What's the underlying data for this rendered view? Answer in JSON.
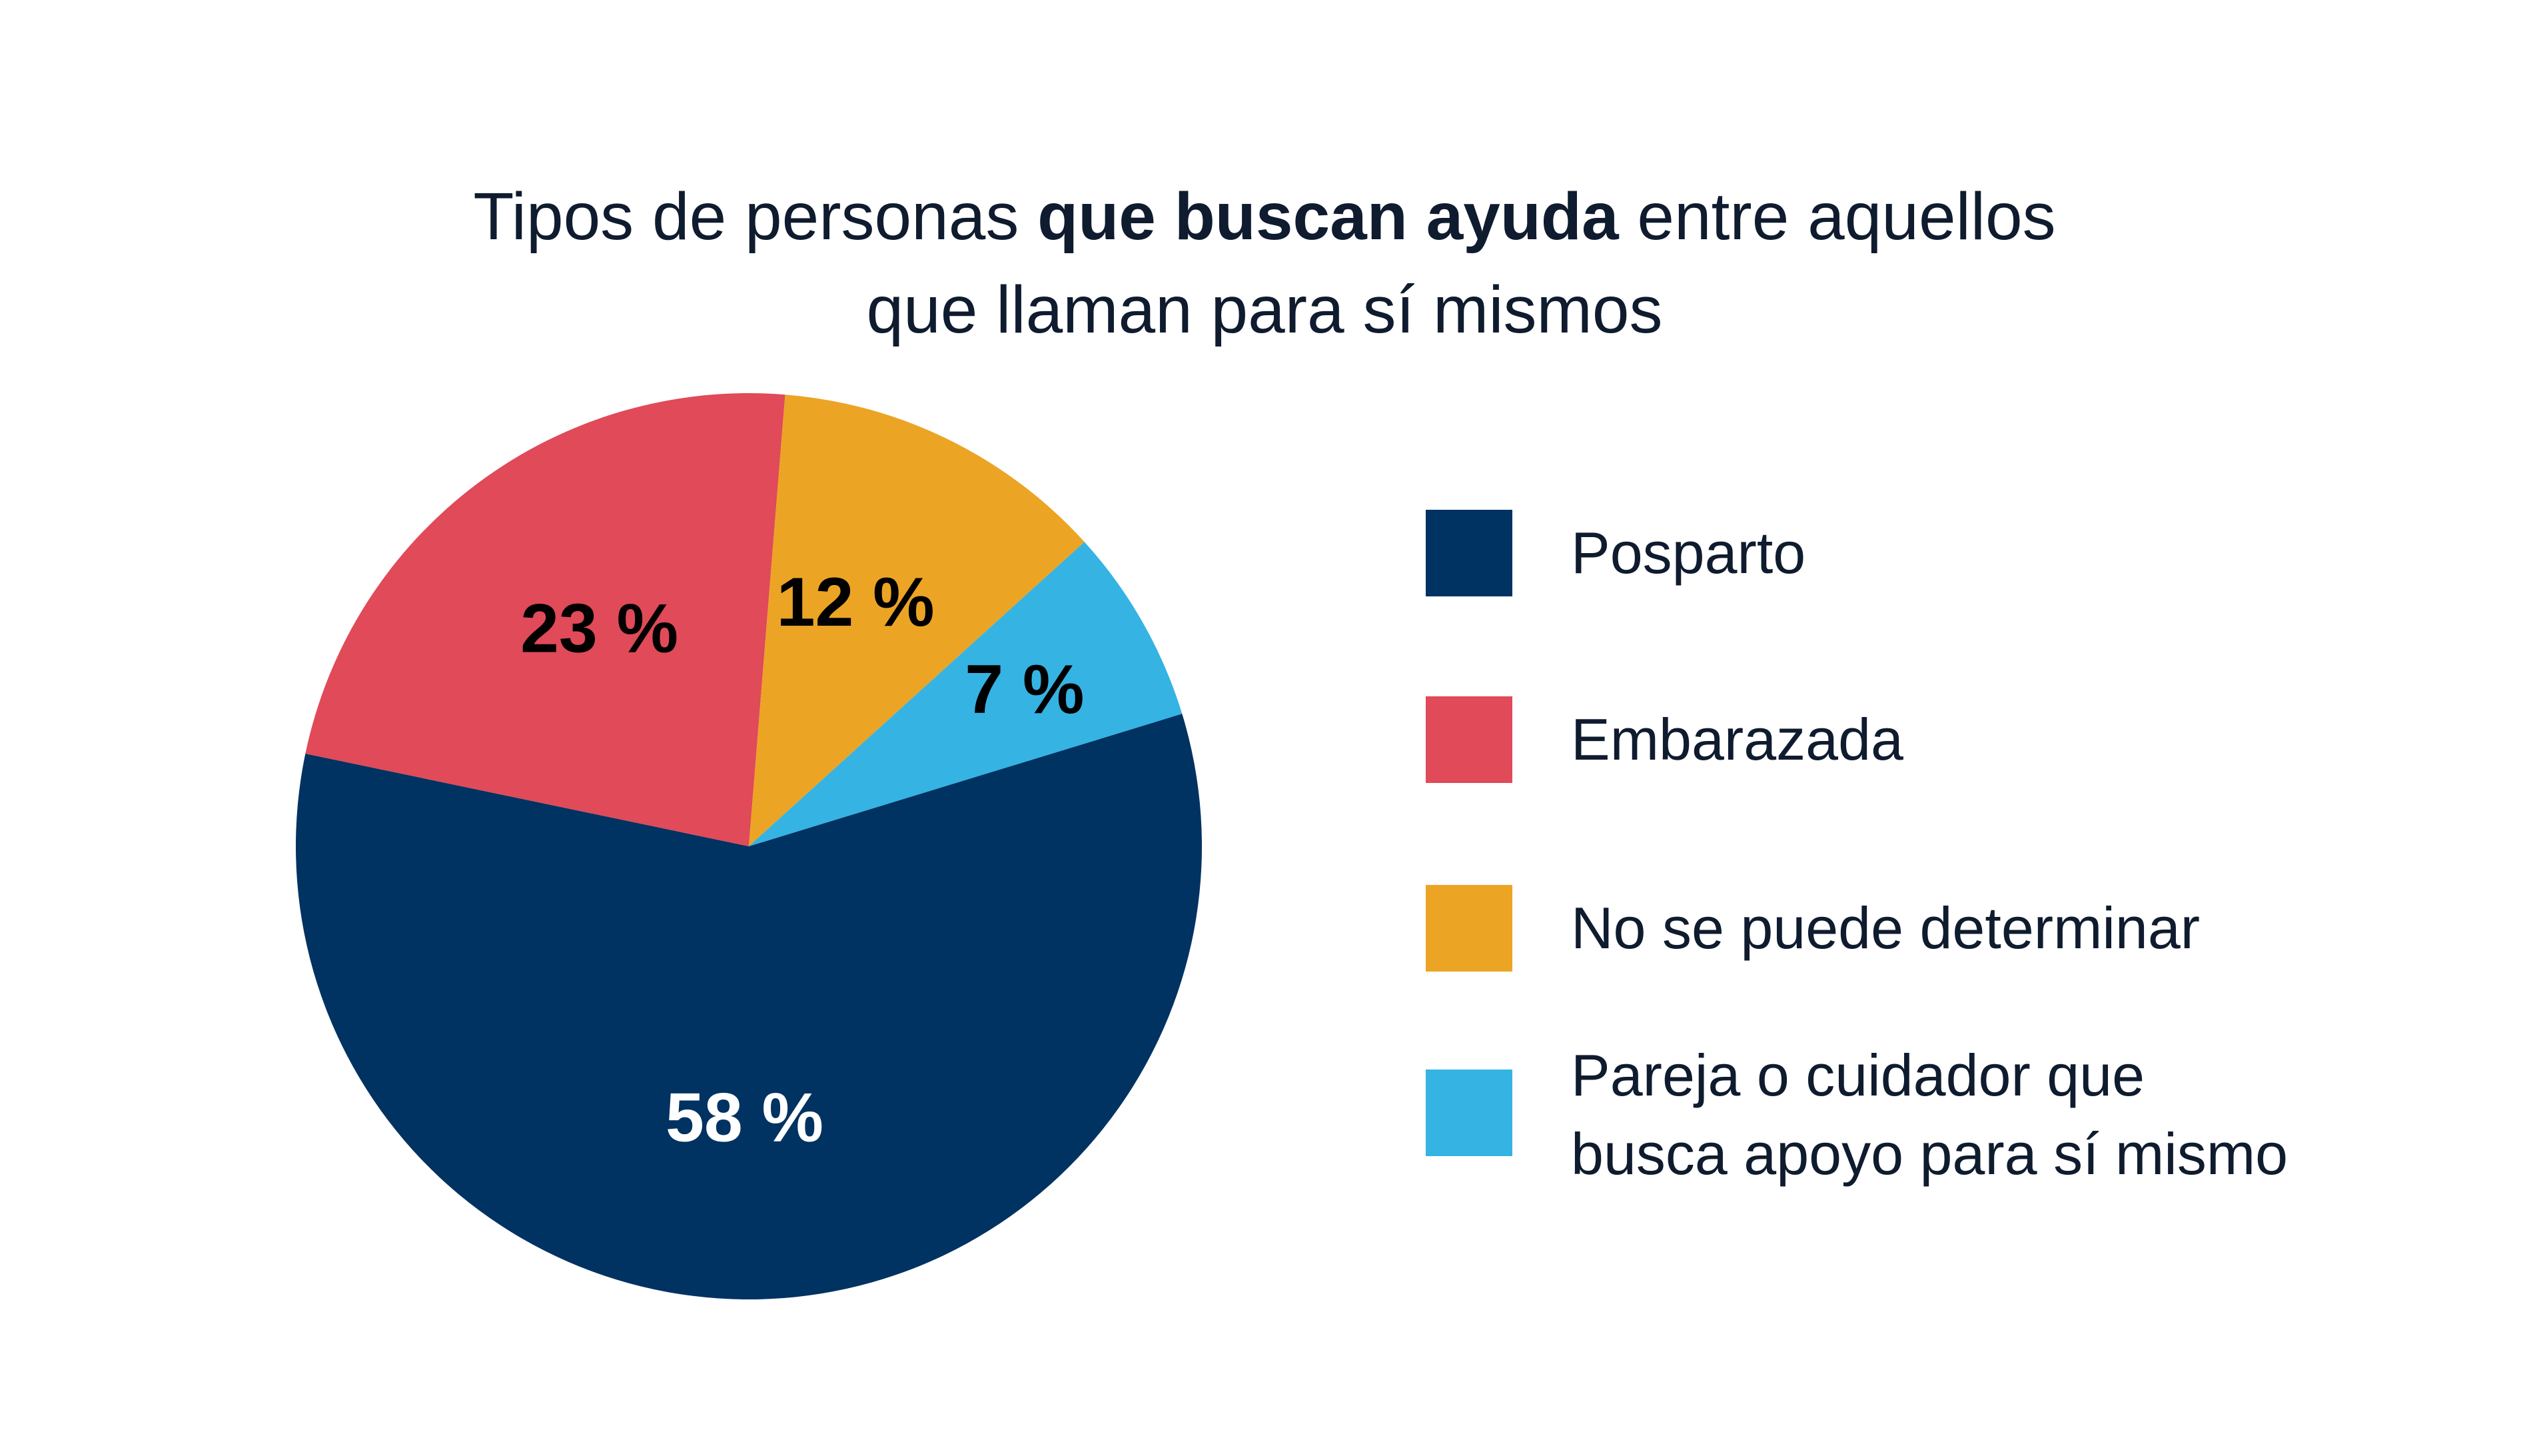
{
  "title": {
    "line1_prefix": "Tipos de personas ",
    "line1_bold": "que buscan ayuda",
    "line1_suffix": " entre aquellos",
    "line2": "que llaman para sí mismos"
  },
  "chart_data": {
    "type": "pie",
    "title": "Tipos de personas que buscan ayuda entre aquellos que llaman para sí mismos",
    "unit": "%",
    "slices": [
      {
        "label": "Posparto",
        "value": 58,
        "value_label": "58 %",
        "color": "#003262",
        "label_color": "#ffffff"
      },
      {
        "label": "Embarazada",
        "value": 23,
        "value_label": "23 %",
        "color": "#e04a59",
        "label_color": "#000000"
      },
      {
        "label": "No se puede determinar",
        "value": 12,
        "value_label": "12 %",
        "color": "#eca425",
        "label_color": "#000000"
      },
      {
        "label": "Pareja o cuidador que\nbusca apoyo para sí mismo",
        "value": 7,
        "value_label": "7 %",
        "color": "#35b3e3",
        "label_color": "#000000"
      }
    ],
    "legend_position": "right",
    "start_angle_deg": 73,
    "direction": "clockwise"
  }
}
